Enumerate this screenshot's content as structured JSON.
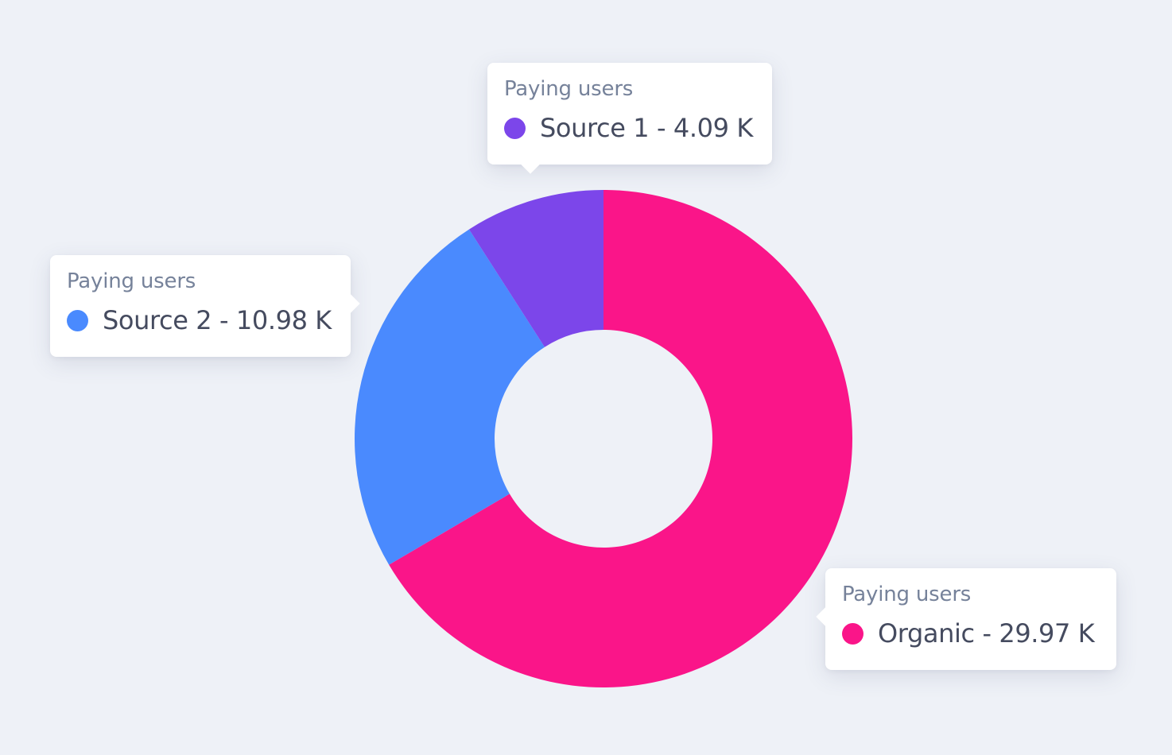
{
  "chart_data": {
    "type": "pie",
    "variant": "donut",
    "categories": [
      "Organic",
      "Source 2",
      "Source 1"
    ],
    "values": [
      29.97,
      10.98,
      4.09
    ],
    "unit": "K",
    "colors": [
      "#fa1589",
      "#4a8afe",
      "#7c46ea"
    ],
    "tooltips": [
      {
        "series": "Paying users",
        "label": "Source 1 - 4.09 K",
        "color": "#7c46ea"
      },
      {
        "series": "Paying users",
        "label": "Source 2 - 10.98 K",
        "color": "#4a8afe"
      },
      {
        "series": "Paying users",
        "label": "Organic - 29.97 K",
        "color": "#fa1589"
      }
    ]
  },
  "colors": {
    "background": "#eef1f7",
    "tooltip_bg": "#ffffff",
    "tooltip_title": "#76829a",
    "tooltip_text": "#454b5f"
  }
}
